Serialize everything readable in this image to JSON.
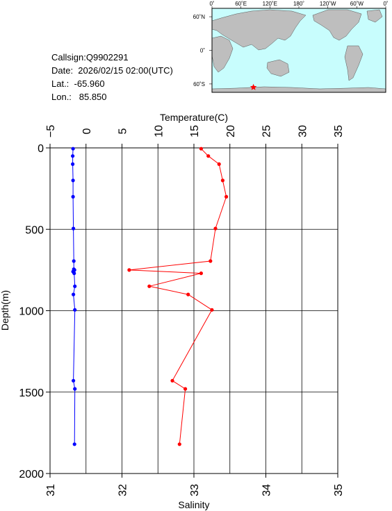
{
  "info": {
    "callsign": "Callsign:Q9902291",
    "date": "Date:  2026/02/15 02:00(UTC)",
    "lat": "Lat.:  -65.960",
    "lon": "Lon.:   85.850"
  },
  "map": {
    "top_labels": [
      "0˚",
      "60˚E",
      "120˚E",
      "180˚",
      "120˚W",
      "60˚W",
      "0˚"
    ],
    "left_labels": [
      "60˚N",
      "0˚",
      "60˚S"
    ],
    "marker": {
      "lat": -65.96,
      "lon": 85.85,
      "color": "#ff0000",
      "icon": "star-icon"
    },
    "ocean_color": "#c8fdfd",
    "land_color": "#bebebe"
  },
  "chart_data": {
    "type": "line",
    "ylabel": "Depth(m)",
    "ylim": [
      2000,
      0
    ],
    "yticks": [
      "0",
      "500",
      "1000",
      "1500",
      "2000"
    ],
    "grid": true,
    "temperature_axis": {
      "label": "Temperature(C)",
      "range": [
        -5,
        35
      ],
      "ticks": [
        "−5",
        "0",
        "5",
        "10",
        "15",
        "20",
        "25",
        "30",
        "35"
      ]
    },
    "salinity_axis": {
      "label": "Salinity",
      "range": [
        31,
        35
      ],
      "ticks": [
        "31",
        "32",
        "33",
        "34",
        "35"
      ]
    },
    "series": [
      {
        "axis": "temperature",
        "color": "#0000ff",
        "points": [
          {
            "x": -1.8,
            "depth": 5
          },
          {
            "x": -1.85,
            "depth": 50
          },
          {
            "x": -1.85,
            "depth": 100
          },
          {
            "x": -1.8,
            "depth": 200
          },
          {
            "x": -1.8,
            "depth": 300
          },
          {
            "x": -1.75,
            "depth": 495
          },
          {
            "x": -1.7,
            "depth": 695
          },
          {
            "x": -1.7,
            "depth": 745
          },
          {
            "x": -1.6,
            "depth": 750
          },
          {
            "x": -1.8,
            "depth": 760
          },
          {
            "x": -1.65,
            "depth": 770
          },
          {
            "x": -1.55,
            "depth": 850
          },
          {
            "x": -1.75,
            "depth": 900
          },
          {
            "x": -1.55,
            "depth": 995
          },
          {
            "x": -1.75,
            "depth": 1430
          },
          {
            "x": -1.55,
            "depth": 1480
          },
          {
            "x": -1.6,
            "depth": 1820
          }
        ]
      },
      {
        "axis": "salinity",
        "color": "#ff0000",
        "points": [
          {
            "x": 33.1,
            "depth": 5
          },
          {
            "x": 33.2,
            "depth": 50
          },
          {
            "x": 33.35,
            "depth": 100
          },
          {
            "x": 33.4,
            "depth": 200
          },
          {
            "x": 33.45,
            "depth": 300
          },
          {
            "x": 33.3,
            "depth": 495
          },
          {
            "x": 33.23,
            "depth": 695
          },
          {
            "x": 32.1,
            "depth": 750
          },
          {
            "x": 33.1,
            "depth": 770
          },
          {
            "x": 32.38,
            "depth": 850
          },
          {
            "x": 32.92,
            "depth": 900
          },
          {
            "x": 33.25,
            "depth": 995
          },
          {
            "x": 32.7,
            "depth": 1430
          },
          {
            "x": 32.88,
            "depth": 1480
          },
          {
            "x": 32.8,
            "depth": 1820
          }
        ]
      }
    ]
  }
}
